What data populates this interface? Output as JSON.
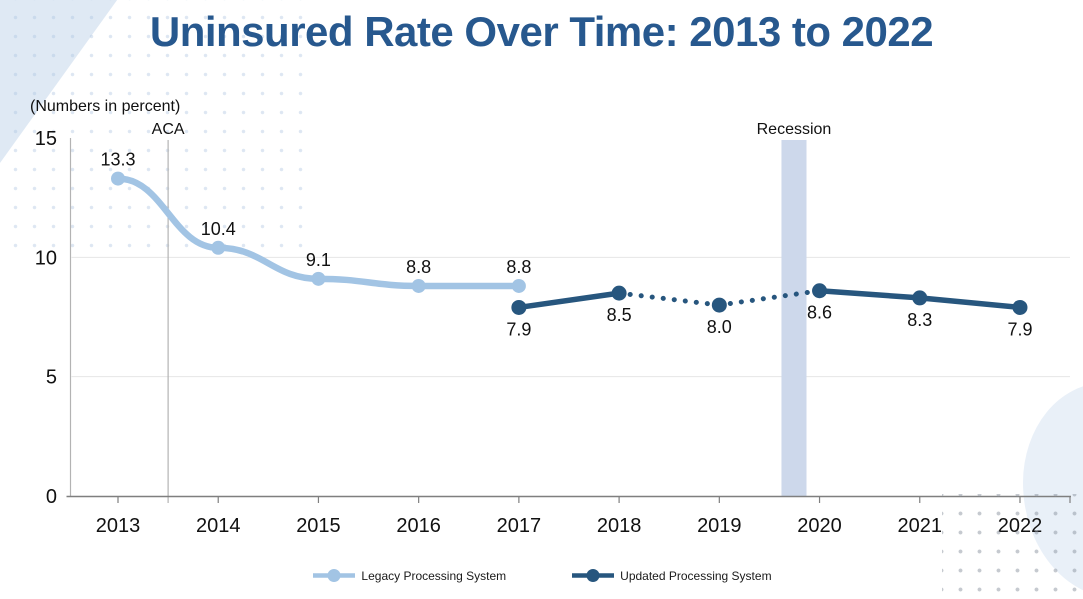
{
  "title": "Uninsured Rate Over Time: 2013 to 2022",
  "colors": {
    "title": "#27588e",
    "legacy_series": "#a2c4e4",
    "updated_series": "#27567e",
    "recession_band": "#cdd8eb",
    "axis_line": "#7f7f7f",
    "guide_line": "#b3b3b3",
    "gridline": "#e6e6e6",
    "label_text": "#111111"
  },
  "chart_data": {
    "type": "line",
    "title": "Uninsured Rate Over Time: 2013 to 2022",
    "units_note": "(Numbers in percent)",
    "categories": [
      "2013",
      "2014",
      "2015",
      "2016",
      "2017",
      "2018",
      "2019",
      "2020",
      "2021",
      "2022"
    ],
    "ylim": [
      0,
      15
    ],
    "yticks": [
      0,
      5,
      10,
      15
    ],
    "gridlines": [
      5,
      10
    ],
    "legend_position": "bottom",
    "series": [
      {
        "name": "Legacy Processing System",
        "color": "#a2c4e4",
        "style": "solid",
        "smooth": true,
        "label_position": "above",
        "points": [
          {
            "x": 2013,
            "y": 13.3,
            "label": "13.3"
          },
          {
            "x": 2014,
            "y": 10.4,
            "label": "10.4"
          },
          {
            "x": 2015,
            "y": 9.1,
            "label": "9.1"
          },
          {
            "x": 2016,
            "y": 8.8,
            "label": "8.8"
          },
          {
            "x": 2017,
            "y": 8.8,
            "label": "8.8"
          }
        ]
      },
      {
        "name": "Updated Processing System",
        "color": "#27567e",
        "style": "mixed",
        "smooth": false,
        "label_position": "below",
        "points": [
          {
            "x": 2017,
            "y": 7.9,
            "label": "7.9"
          },
          {
            "x": 2018,
            "y": 8.5,
            "label": "8.5"
          },
          {
            "x": 2019,
            "y": 8.0,
            "label": "8.0"
          },
          {
            "x": 2020,
            "y": 8.6,
            "label": "8.6"
          },
          {
            "x": 2021,
            "y": 8.3,
            "label": "8.3"
          },
          {
            "x": 2022,
            "y": 7.9,
            "label": "7.9"
          }
        ],
        "segments": [
          {
            "from": 2017,
            "to": 2018,
            "style": "solid"
          },
          {
            "from": 2018,
            "to": 2020,
            "style": "dotted"
          },
          {
            "from": 2020,
            "to": 2022,
            "style": "solid"
          }
        ]
      }
    ],
    "annotations": [
      {
        "id": "aca",
        "type": "vline",
        "x": 2013.5,
        "label": "ACA"
      },
      {
        "id": "recession",
        "type": "band",
        "x_from": 2019.62,
        "x_to": 2019.87,
        "label": "Recession"
      }
    ]
  }
}
